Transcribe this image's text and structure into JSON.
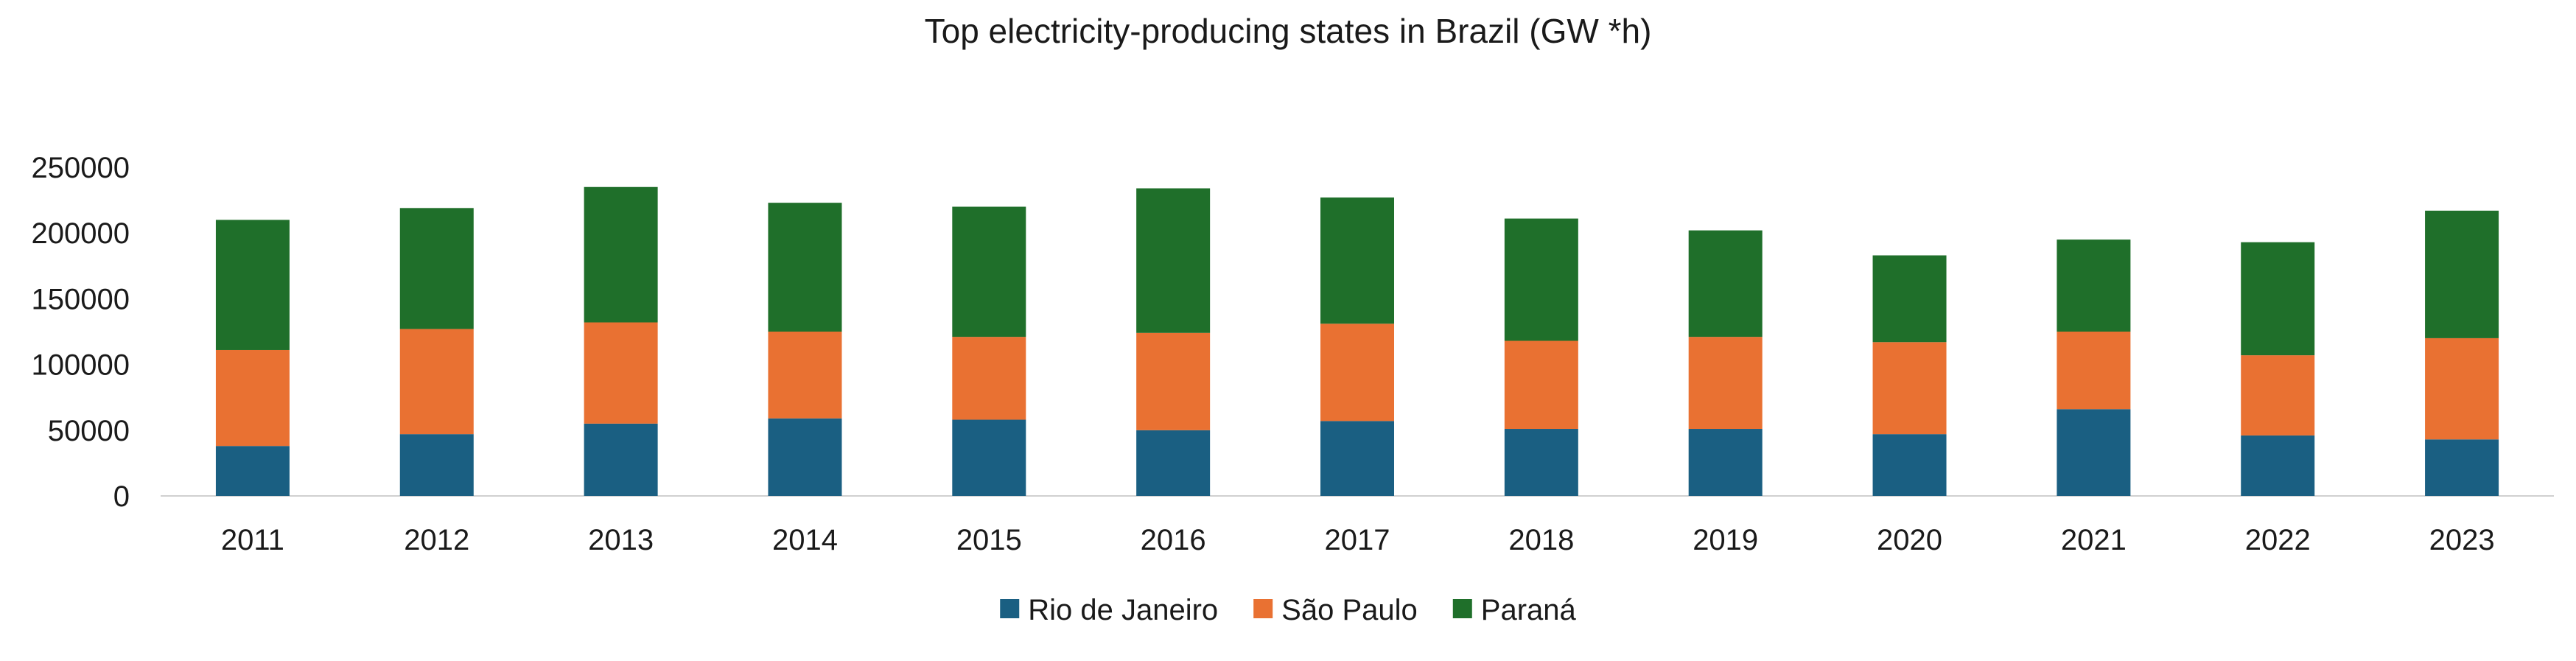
{
  "chart_data": {
    "type": "bar",
    "stacked": true,
    "title": "Top electricity-producing states in Brazil (GW *h)",
    "xlabel": "",
    "ylabel": "",
    "categories": [
      "2011",
      "2012",
      "2013",
      "2014",
      "2015",
      "2016",
      "2017",
      "2018",
      "2019",
      "2020",
      "2021",
      "2022",
      "2023"
    ],
    "yticks": [
      0,
      50000,
      100000,
      150000,
      200000,
      250000
    ],
    "ylim": [
      0,
      250000
    ],
    "grid": false,
    "legend_position": "bottom",
    "series": [
      {
        "name": "Rio de Janeiro",
        "color": "#1a5f82",
        "values": [
          38000,
          47000,
          55000,
          59000,
          58000,
          50000,
          57000,
          51000,
          51000,
          47000,
          66000,
          46000,
          43000
        ]
      },
      {
        "name": "São Paulo",
        "color": "#e97132",
        "values": [
          73000,
          80000,
          77000,
          66000,
          63000,
          74000,
          74000,
          67000,
          70000,
          70000,
          59000,
          61000,
          77000
        ]
      },
      {
        "name": "Paraná",
        "color": "#1f6f2a",
        "values": [
          99000,
          92000,
          103000,
          98000,
          99000,
          110000,
          96000,
          93000,
          81000,
          66000,
          70000,
          86000,
          97000
        ]
      }
    ]
  }
}
